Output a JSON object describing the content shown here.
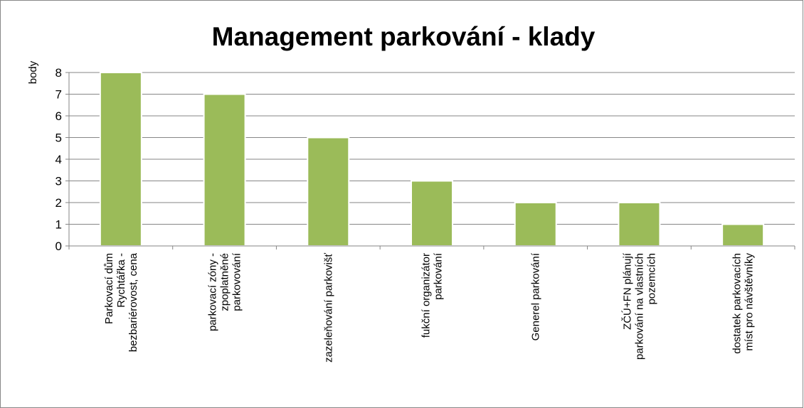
{
  "chart_data": {
    "type": "bar",
    "title": "Management parkování - klady",
    "y_label": "body",
    "categories": [
      "Parkovací dům\nRychtářka -\nbezbariérovost, cena",
      "parkovací zóny -\nzpoplatněné\nparkovování",
      "zazeleňování parkovišť",
      "fukční organizátor\nparkování",
      "Generel parkování",
      "ZČÚ+FN plánují\nparkování na vlastních\npozemcích",
      "dostatek parkovacích\nmíst pro návštěvníky"
    ],
    "values": [
      8,
      7,
      5,
      3,
      2,
      2,
      1
    ],
    "color": "#9bbb59",
    "ylim": [
      0,
      8
    ],
    "yticks": [
      0,
      1,
      2,
      3,
      4,
      5,
      6,
      7,
      8
    ],
    "grid": true
  }
}
